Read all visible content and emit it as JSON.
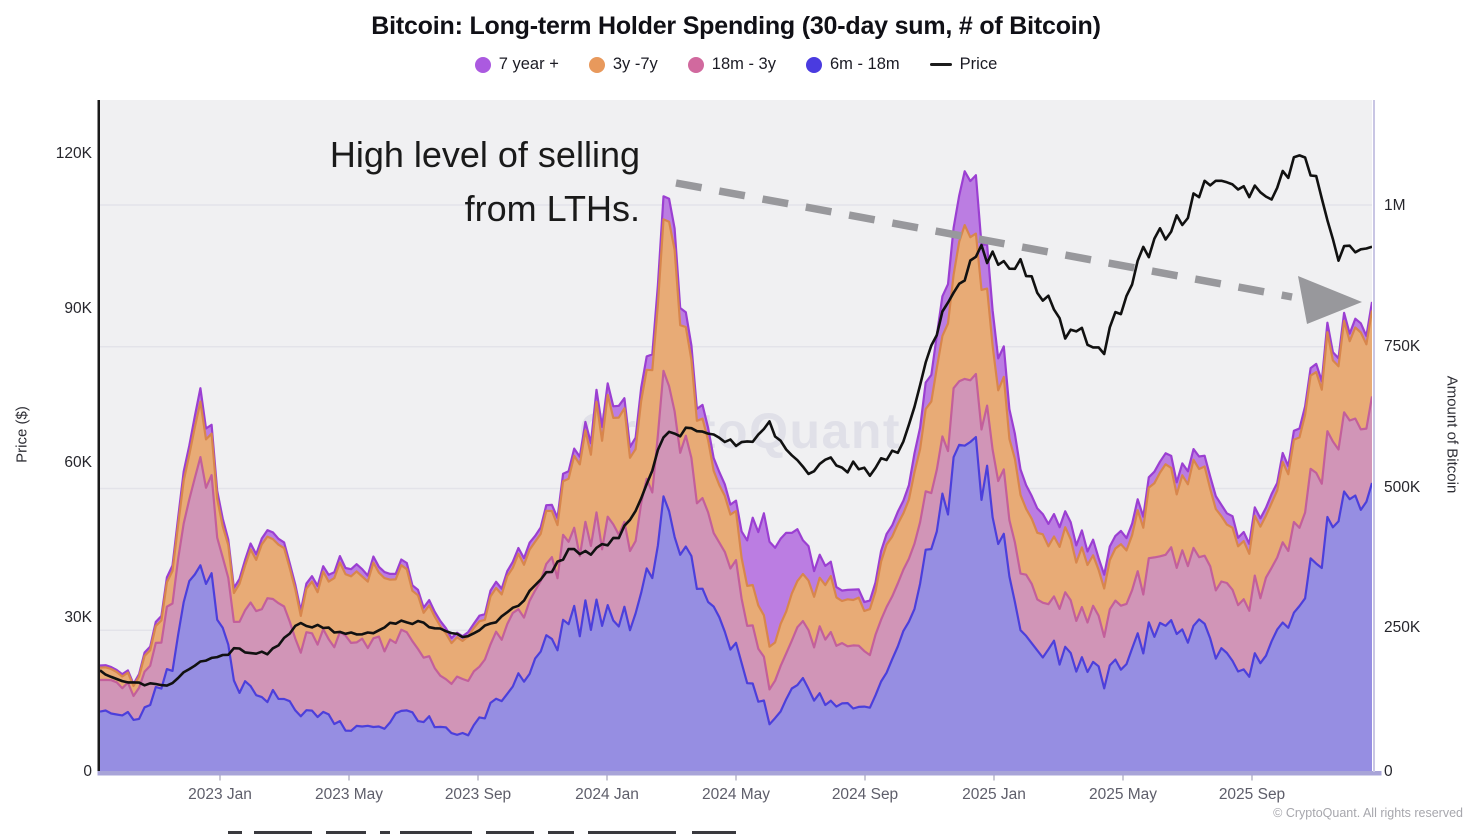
{
  "title": "Bitcoin: Long-term Holder Spending (30-day sum, # of Bitcoin)",
  "legend": [
    {
      "label": "7 year +",
      "color": "#ab5ae0",
      "type": "dot"
    },
    {
      "label": "3y -7y",
      "color": "#e8995c",
      "type": "dot"
    },
    {
      "label": "18m - 3y",
      "color": "#d1699e",
      "type": "dot"
    },
    {
      "label": "6m - 18m",
      "color": "#4a3be0",
      "type": "dot"
    },
    {
      "label": "Price",
      "color": "#1c1c1c",
      "type": "line"
    }
  ],
  "annotation": {
    "line1": "High level of selling",
    "line2": "from LTHs."
  },
  "watermark": "CryptoQuant",
  "copyright": "© CryptoQuant. All rights reserved",
  "colors": {
    "plot_background": "#f0f0f2",
    "gridline": "#e3e3e9",
    "left_axis_line": "#1a1a1a",
    "bottom_axis_line": "#a8a4d8",
    "right_axis_line": "#c9c6e4",
    "arrow": "#98989c",
    "price_line": "#111111",
    "watermark": "#dfdfe8"
  },
  "chart_data": {
    "type": "area",
    "stacked": true,
    "grid": "horizontal",
    "legend_position": "top",
    "title": "Bitcoin: Long-term Holder Spending (30-day sum, # of Bitcoin)",
    "x_axis_tick_labels": [
      "2023 Jan",
      "2023 May",
      "2023 Sep",
      "2024 Jan",
      "2024 May",
      "2024 Sep",
      "2025 Jan",
      "2025 May",
      "2025 Sep"
    ],
    "left_axis": {
      "title": "Price ($)",
      "ticks": [
        "0",
        "30K",
        "60K",
        "90K",
        "120K"
      ],
      "range_usd": [
        0,
        130000
      ]
    },
    "right_axis": {
      "title": "Amount of Bitcoin",
      "ticks": [
        "0",
        "250K",
        "500K",
        "750K",
        "1M"
      ],
      "range_btc": [
        0,
        1175000
      ]
    },
    "x_months": [
      "2022-10",
      "2022-11",
      "2022-12",
      "2023-01",
      "2023-02",
      "2023-03",
      "2023-04",
      "2023-05",
      "2023-06",
      "2023-07",
      "2023-08",
      "2023-09",
      "2023-10",
      "2023-11",
      "2023-12",
      "2024-01",
      "2024-02",
      "2024-03",
      "2024-04",
      "2024-05",
      "2024-06",
      "2024-07",
      "2024-08",
      "2024-09",
      "2024-10",
      "2024-11",
      "2024-12",
      "2025-01",
      "2025-02",
      "2025-03",
      "2025-04",
      "2025-05",
      "2025-06",
      "2025-07",
      "2025-08",
      "2025-09",
      "2025-10",
      "2025-11",
      "2025-12"
    ],
    "stack_order_bottom_to_top": [
      "6m - 18m",
      "18m - 3y",
      "3y -7y",
      "7 year +"
    ],
    "series": [
      {
        "name": "6m - 18m",
        "fill": "#968ee2",
        "stroke": "#4c3fdb",
        "values_thousand_btc": [
          130,
          95,
          170,
          400,
          160,
          130,
          105,
          85,
          75,
          100,
          90,
          65,
          135,
          215,
          275,
          295,
          255,
          470,
          310,
          205,
          100,
          150,
          120,
          110,
          230,
          460,
          640,
          380,
          205,
          190,
          165,
          225,
          255,
          235,
          175,
          215,
          310,
          440,
          470
        ]
      },
      {
        "name": "18m - 3y",
        "fill": "#d195b7",
        "stroke": "#c35f9b",
        "values_thousand_btc": [
          55,
          45,
          95,
          185,
          95,
          170,
          125,
          155,
          145,
          135,
          105,
          88,
          115,
          125,
          135,
          155,
          135,
          215,
          155,
          125,
          65,
          105,
          115,
          95,
          120,
          105,
          125,
          115,
          92,
          85,
          92,
          115,
          135,
          130,
          120,
          140,
          150,
          145,
          150
        ]
      },
      {
        "name": "3y -7y",
        "fill": "#e8ab76",
        "stroke": "#d8864c",
        "values_thousand_btc": [
          22,
          20,
          40,
          95,
          50,
          115,
          68,
          118,
          125,
          105,
          78,
          68,
          88,
          92,
          105,
          215,
          155,
          285,
          145,
          85,
          70,
          80,
          88,
          78,
          115,
          175,
          255,
          160,
          112,
          105,
          88,
          105,
          148,
          165,
          105,
          130,
          165,
          160,
          175
        ]
      },
      {
        "name": "7 year +",
        "fill": "#bb7de2",
        "stroke": "#9b3fd2",
        "values_thousand_btc": [
          4,
          4,
          8,
          22,
          8,
          12,
          9,
          12,
          12,
          10,
          9,
          8,
          10,
          11,
          13,
          22,
          18,
          40,
          22,
          18,
          205,
          60,
          18,
          14,
          22,
          55,
          100,
          48,
          38,
          32,
          22,
          22,
          22,
          22,
          18,
          15,
          15,
          15,
          15
        ]
      }
    ],
    "price_series": {
      "name": "Price",
      "color": "#111111",
      "values_thousand_usd": [
        19.4,
        17.0,
        16.8,
        21.0,
        23.5,
        23.0,
        29.0,
        27.5,
        26.5,
        30.0,
        28.0,
        26.0,
        29.5,
        36.5,
        43.0,
        43.0,
        50.0,
        67.0,
        67.0,
        63.0,
        66.5,
        59.0,
        60.5,
        57.5,
        64.0,
        86.0,
        100.0,
        101.0,
        94.0,
        85.0,
        83.0,
        100.0,
        106.0,
        114.0,
        114.5,
        112.0,
        120.0,
        100.0,
        103.0
      ]
    }
  }
}
